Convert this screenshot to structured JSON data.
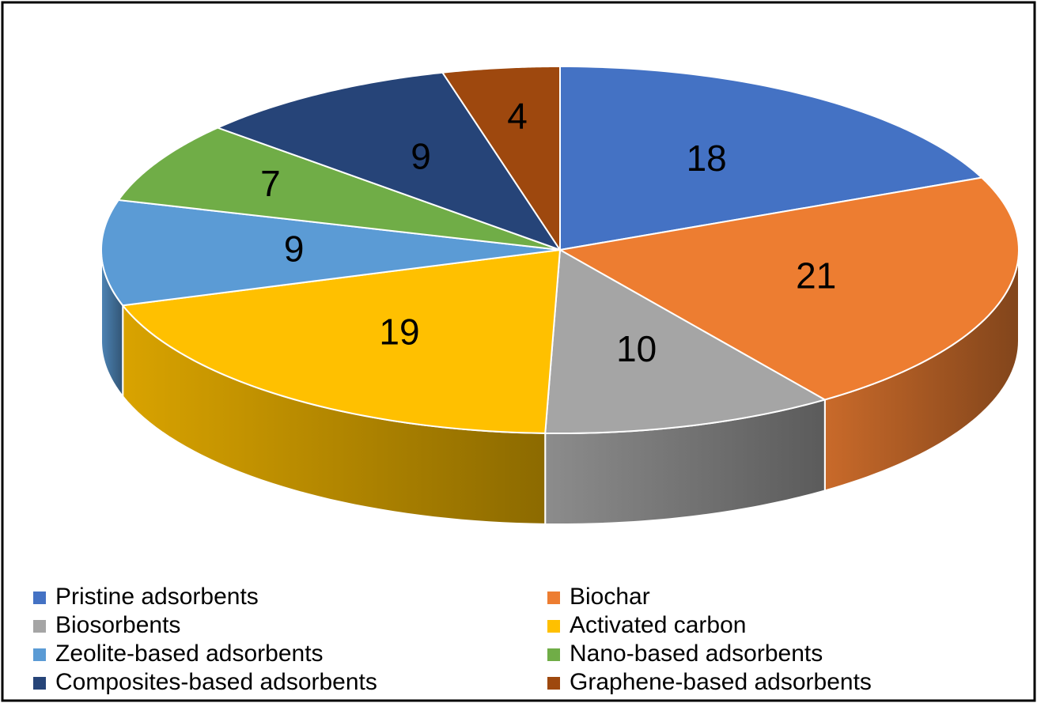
{
  "chart_data": {
    "type": "pie",
    "style": "3d",
    "categories": [
      "Pristine adsorbents",
      "Biochar",
      "Biosorbents",
      "Activated carbon",
      "Zeolite-based adsorbents",
      "Nano-based adsorbents",
      "Composites-based adsorbents",
      "Graphene-based adsorbents"
    ],
    "values": [
      18,
      21,
      10,
      19,
      9,
      7,
      9,
      4
    ],
    "colors": [
      "#4472c4",
      "#ed7d31",
      "#a5a5a5",
      "#ffc000",
      "#5b9bd5",
      "#70ad47",
      "#264478",
      "#9e480e"
    ],
    "legend": "bottom"
  }
}
